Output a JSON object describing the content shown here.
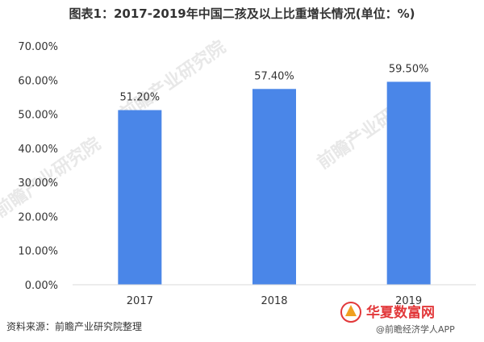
{
  "chart_data": {
    "type": "bar",
    "title": "图表1：2017-2019年中国二孩及以上比重增长情况(单位：%)",
    "categories": [
      "2017",
      "2018",
      "2019"
    ],
    "values": [
      51.2,
      57.4,
      59.5
    ],
    "value_labels": [
      "51.20%",
      "57.40%",
      "59.50%"
    ],
    "ylim": [
      0,
      70
    ],
    "yticks": [
      {
        "value": 0,
        "label": "0.00%"
      },
      {
        "value": 10,
        "label": "10.00%"
      },
      {
        "value": 20,
        "label": "20.00%"
      },
      {
        "value": 30,
        "label": "30.00%"
      },
      {
        "value": 40,
        "label": "40.00%"
      },
      {
        "value": 50,
        "label": "50.00%"
      },
      {
        "value": 60,
        "label": "60.00%"
      },
      {
        "value": 70,
        "label": "70.00%"
      }
    ],
    "xlabel": "",
    "ylabel": "",
    "grid": false,
    "bar_color": "#4a86e8"
  },
  "source": "资料来源：前瞻产业研究院整理",
  "watermarks": {
    "brand": "前瞻产业研究院",
    "color": "#e8e8e8"
  },
  "logo": {
    "main": "华夏数富网",
    "sub": "@前瞻经济学人APP",
    "color": "#e2383a"
  }
}
